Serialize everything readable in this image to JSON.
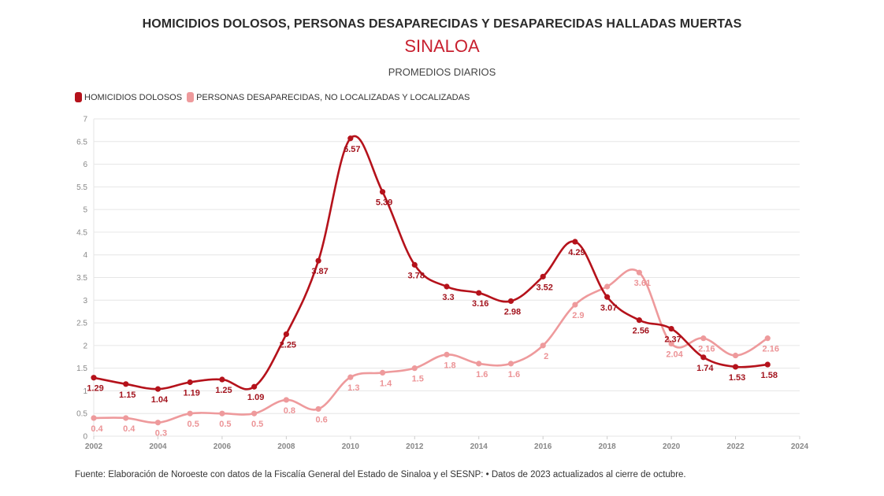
{
  "header": {
    "title": "HOMICIDIOS DOLOSOS, PERSONAS DESAPARECIDAS Y DESAPARECIDAS HALLADAS MUERTAS",
    "subtitle": "SINALOA",
    "caption": "PROMEDIOS DIARIOS"
  },
  "source": "Fuente: Elaboración de Noroeste con datos de la Fiscalía General del Estado de Sinaloa y el SESNP: • Datos de 2023 actualizados al cierre de octubre.",
  "chart_data": {
    "type": "line",
    "title": "HOMICIDIOS DOLOSOS, PERSONAS DESAPARECIDAS Y DESAPARECIDAS HALLADAS MUERTAS",
    "subtitle": "SINALOA — PROMEDIOS DIARIOS",
    "xlabel": "",
    "ylabel": "",
    "xlim": [
      2002,
      2024
    ],
    "ylim": [
      0,
      7
    ],
    "x_ticks": [
      2002,
      2004,
      2006,
      2008,
      2010,
      2012,
      2014,
      2016,
      2018,
      2020,
      2022,
      2024
    ],
    "y_ticks": [
      0,
      0.5,
      1,
      1.5,
      2,
      2.5,
      3,
      3.5,
      4,
      4.5,
      5,
      5.5,
      6,
      6.5,
      7
    ],
    "grid": true,
    "legend_position": "top-left",
    "series": [
      {
        "name": "HOMICIDIOS DOLOSOS",
        "color": "#b5121b",
        "x": [
          2002,
          2003,
          2004,
          2005,
          2006,
          2007,
          2008,
          2009,
          2010,
          2011,
          2012,
          2013,
          2014,
          2015,
          2016,
          2017,
          2018,
          2019,
          2020,
          2021,
          2022,
          2023
        ],
        "values": [
          1.29,
          1.15,
          1.04,
          1.19,
          1.25,
          1.09,
          2.25,
          3.87,
          6.57,
          5.39,
          3.78,
          3.3,
          3.16,
          2.98,
          3.52,
          4.29,
          3.07,
          2.56,
          2.37,
          1.74,
          1.53,
          1.58
        ],
        "labels": [
          "1.29",
          "1.15",
          "1.04",
          "1.19",
          "1.25",
          "1.09",
          "2.25",
          "3.87",
          "6.57",
          "5.39",
          "3.78",
          "3.3",
          "3.16",
          "2.98",
          "3.52",
          "4.29",
          "3.07",
          "2.56",
          "2.37",
          "1.74",
          "1.53",
          "1.58"
        ]
      },
      {
        "name": "PERSONAS DESAPARECIDAS, NO LOCALIZADAS Y LOCALIZADAS",
        "color": "#ee9a9c",
        "x": [
          2002,
          2003,
          2004,
          2005,
          2006,
          2007,
          2008,
          2009,
          2010,
          2011,
          2012,
          2013,
          2014,
          2015,
          2016,
          2017,
          2018,
          2019,
          2020,
          2021,
          2022,
          2023
        ],
        "values": [
          0.4,
          0.4,
          0.3,
          0.5,
          0.5,
          0.5,
          0.8,
          0.6,
          1.3,
          1.4,
          1.5,
          1.8,
          1.6,
          1.6,
          2,
          2.9,
          3.3,
          3.61,
          2.04,
          2.16,
          1.78,
          2.16
        ],
        "labels": [
          "0.4",
          "0.4",
          "0.3",
          "0.5",
          "0.5",
          "0.5",
          "0.8",
          "0.6",
          "1.3",
          "1.4",
          "1.5",
          "1.8",
          "1.6",
          "1.6",
          "2",
          "2.9",
          "",
          "3.61",
          "2.04",
          "2.16",
          "",
          "2.16"
        ]
      }
    ]
  }
}
